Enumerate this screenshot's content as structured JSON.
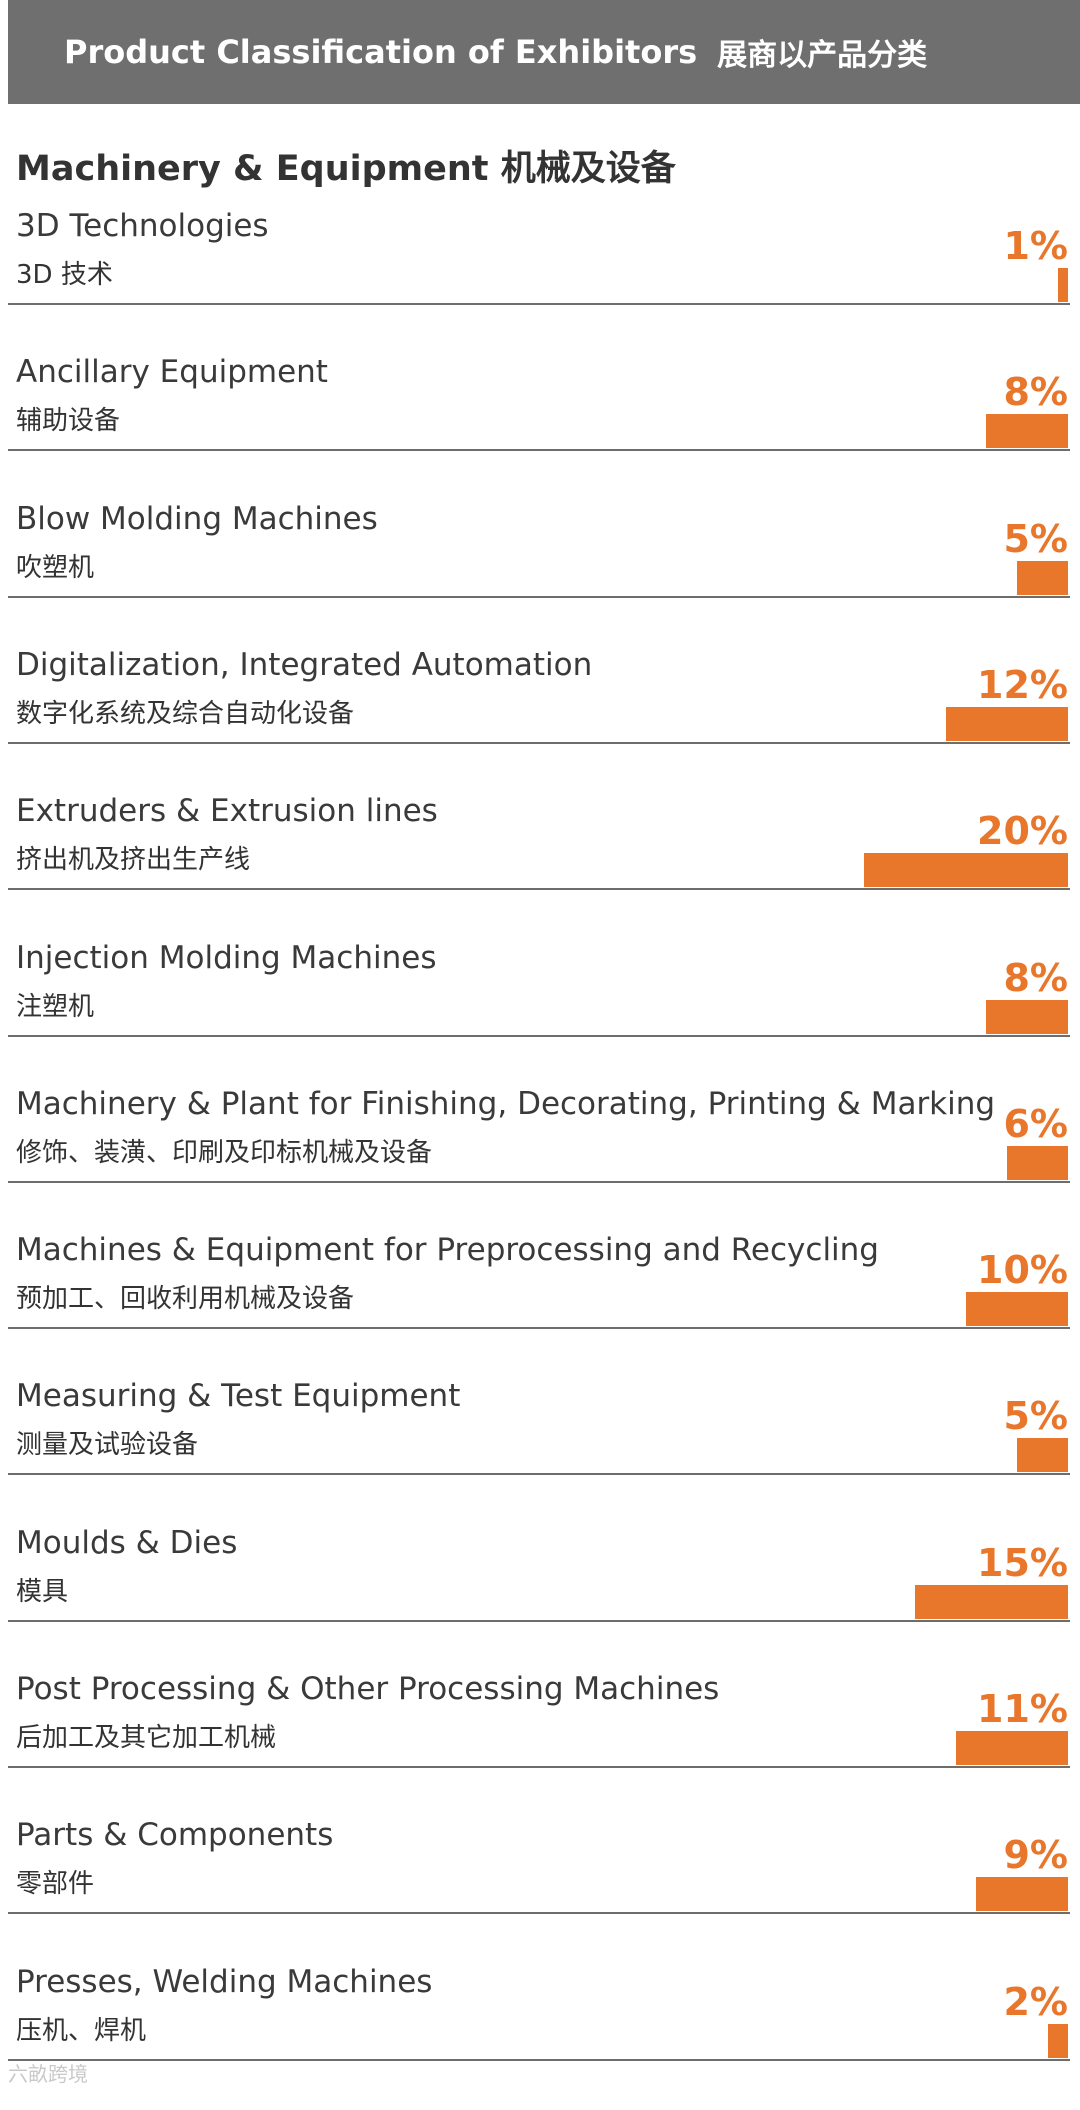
{
  "header": {
    "title_en": "Product Classification of Exhibitors",
    "title_zh": "展商以产品分类"
  },
  "section": {
    "title": "Machinery & Equipment 机械及设备"
  },
  "colors": {
    "accent": "#e8762b",
    "header_bg": "#6f6f70",
    "rule": "#6d6d6d"
  },
  "chart_data": {
    "type": "bar",
    "title": "Machinery & Equipment 机械及设备",
    "unit": "%",
    "categories": [
      {
        "en": "3D Technologies",
        "zh": "3D 技术"
      },
      {
        "en": "Ancillary Equipment",
        "zh": "辅助设备"
      },
      {
        "en": "Blow Molding Machines",
        "zh": "吹塑机"
      },
      {
        "en": "Digitalization, Integrated Automation",
        "zh": "数字化系统及综合自动化设备"
      },
      {
        "en": "Extruders & Extrusion lines",
        "zh": "挤出机及挤出生产线"
      },
      {
        "en": "Injection Molding Machines",
        "zh": "注塑机"
      },
      {
        "en": "Machinery & Plant for Finishing, Decorating, Printing & Marking",
        "zh": "修饰、装潢、印刷及印标机械及设备"
      },
      {
        "en": "Machines & Equipment for Preprocessing and Recycling",
        "zh": "预加工、回收利用机械及设备"
      },
      {
        "en": "Measuring & Test Equipment",
        "zh": "测量及试验设备"
      },
      {
        "en": "Moulds & Dies",
        "zh": "模具"
      },
      {
        "en": "Post Processing & Other Processing Machines",
        "zh": "后加工及其它加工机械"
      },
      {
        "en": "Parts & Components",
        "zh": "零部件"
      },
      {
        "en": "Presses, Welding Machines",
        "zh": "压机、焊机"
      }
    ],
    "values": [
      1,
      8,
      5,
      12,
      20,
      8,
      6,
      10,
      5,
      15,
      11,
      9,
      2
    ],
    "labels": [
      "1%",
      "8%",
      "5%",
      "12%",
      "20%",
      "8%",
      "6%",
      "10%",
      "5%",
      "15%",
      "11%",
      "9%",
      "2%"
    ],
    "ylim": [
      0,
      100
    ]
  },
  "watermark": "六畝跨境"
}
